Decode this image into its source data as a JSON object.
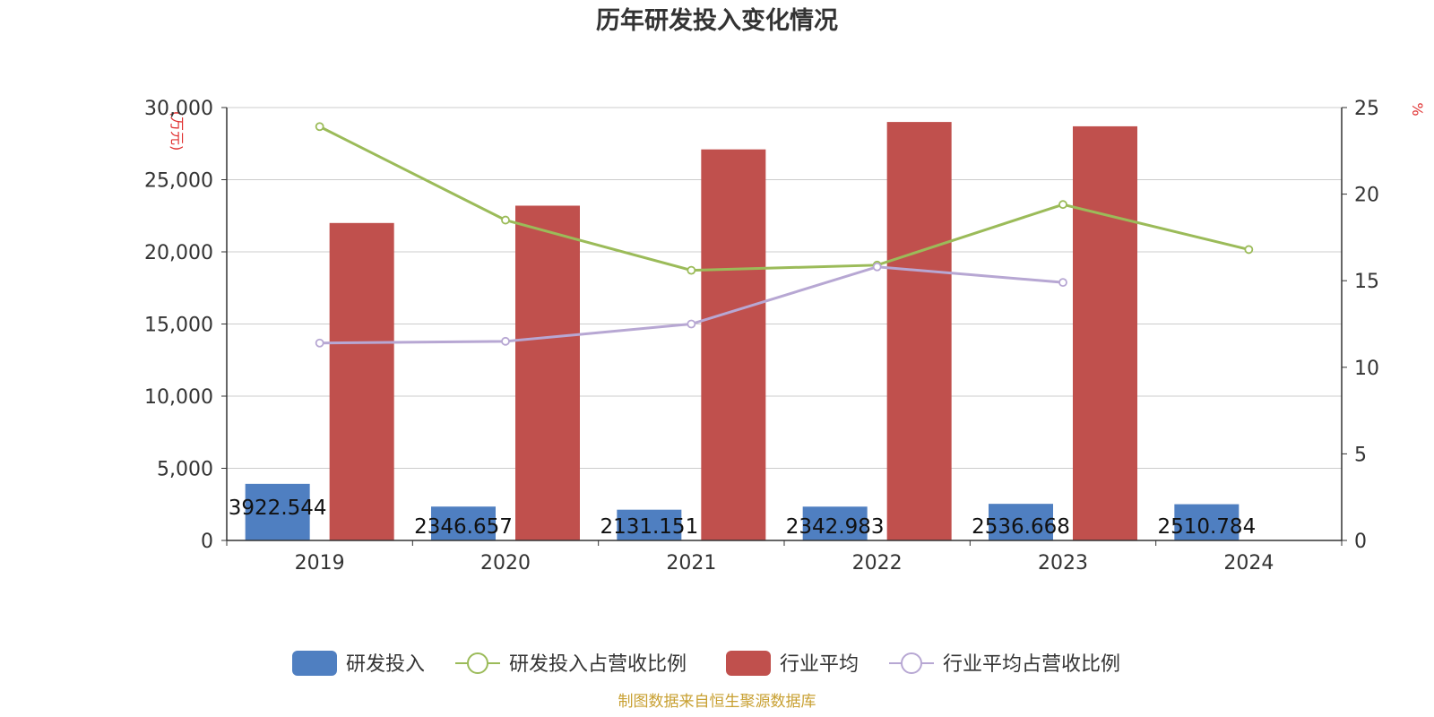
{
  "chart_data": {
    "type": "bar",
    "title": "历年研发投入变化情况",
    "y_left_unit": "(万元)",
    "y_right_unit": "%",
    "categories": [
      "2019",
      "2020",
      "2021",
      "2022",
      "2023",
      "2024"
    ],
    "y_left_ticks": [
      "0",
      "5,000",
      "10,000",
      "15,000",
      "20,000",
      "25,000",
      "30,000"
    ],
    "y_right_ticks": [
      "0",
      "5",
      "10",
      "15",
      "20",
      "25"
    ],
    "ylim_left": [
      0,
      30000
    ],
    "ylim_right": [
      0,
      25
    ],
    "grid": true,
    "legend_position": "bottom",
    "series": [
      {
        "name": "研发投入",
        "kind": "bar",
        "axis": "left",
        "color": "#4f7fc1",
        "values": [
          3922.544,
          2346.657,
          2131.151,
          2342.983,
          2536.668,
          2510.784
        ],
        "labels": [
          "3922.544",
          "2346.657",
          "2131.151",
          "2342.983",
          "2536.668",
          "2510.784"
        ]
      },
      {
        "name": "研发投入占营收比例",
        "kind": "line",
        "axis": "right",
        "color": "#9bbb59",
        "values": [
          23.9,
          18.5,
          15.6,
          15.9,
          19.4,
          16.8
        ]
      },
      {
        "name": "行业平均",
        "kind": "bar",
        "axis": "left",
        "color": "#c0504d",
        "values": [
          22000,
          23200,
          27100,
          29000,
          28700,
          null
        ]
      },
      {
        "name": "行业平均占营收比例",
        "kind": "line",
        "axis": "right",
        "color": "#b7a7d3",
        "values": [
          11.4,
          11.5,
          12.5,
          15.8,
          14.9,
          null
        ]
      }
    ],
    "source": "制图数据来自恒生聚源数据库"
  }
}
